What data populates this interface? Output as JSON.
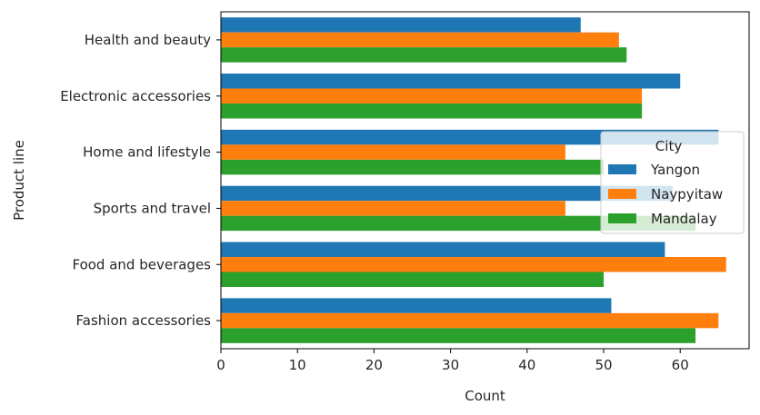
{
  "chart_data": {
    "type": "bar",
    "orientation": "horizontal",
    "xlabel": "Count",
    "ylabel": "Product line",
    "xlim": [
      0,
      69
    ],
    "xticks": [
      0,
      10,
      20,
      30,
      40,
      50,
      60
    ],
    "grid": false,
    "legend_title": "City",
    "legend_position": "center-right",
    "categories": [
      "Health and beauty",
      "Electronic accessories",
      "Home and lifestyle",
      "Sports and travel",
      "Food and beverages",
      "Fashion accessories"
    ],
    "series": [
      {
        "name": "Yangon",
        "color": "#1f77b4",
        "values": [
          47,
          60,
          65,
          59,
          58,
          51
        ]
      },
      {
        "name": "Naypyitaw",
        "color": "#ff7f0e",
        "values": [
          52,
          55,
          45,
          45,
          66,
          65
        ]
      },
      {
        "name": "Mandalay",
        "color": "#2ca02c",
        "values": [
          53,
          55,
          50,
          62,
          50,
          62
        ]
      }
    ]
  }
}
